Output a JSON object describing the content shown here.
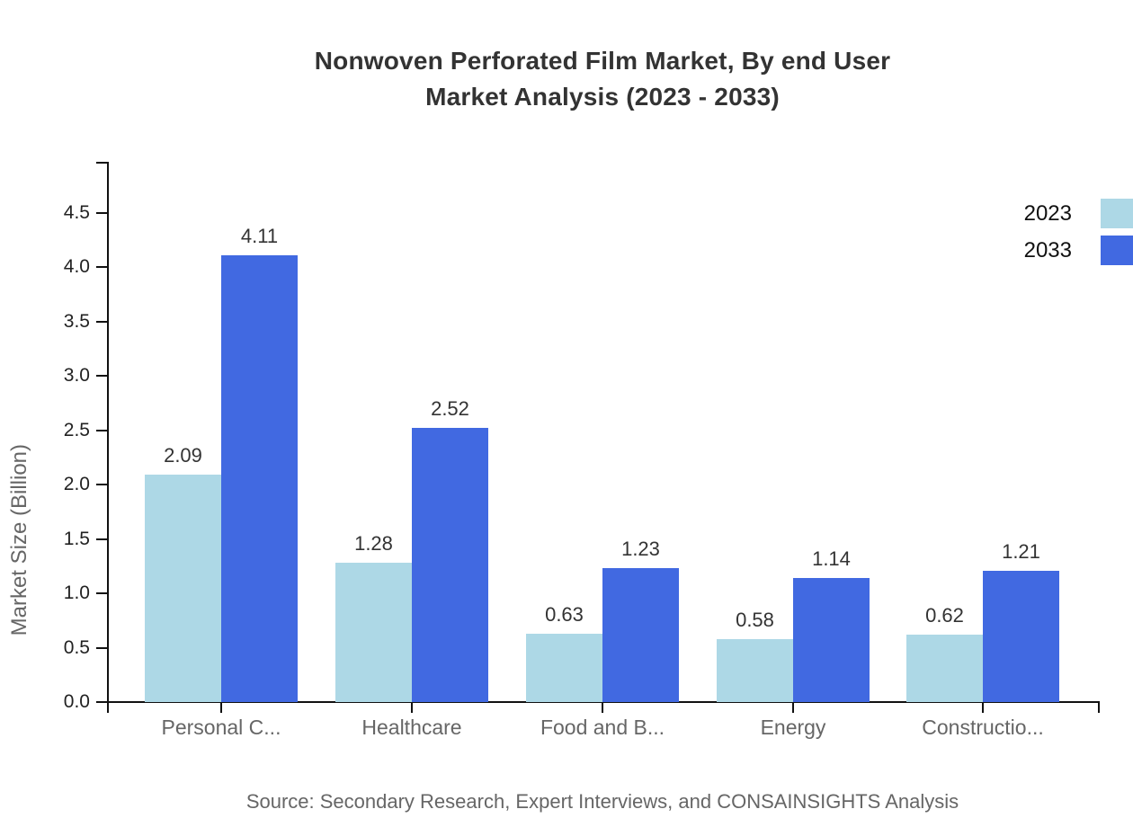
{
  "title": {
    "line1": "Nonwoven Perforated Film Market, By end User",
    "line2": "Market Analysis (2023 - 2033)"
  },
  "source": "Source: Secondary Research, Expert Interviews, and CONSAINSIGHTS Analysis",
  "colors": {
    "series_2023": "#ADD8E6",
    "series_2033": "#4169E1",
    "axis": "#111111",
    "value_label": "#333333",
    "category_label": "#666666"
  },
  "chart_data": {
    "type": "bar",
    "title": "Nonwoven Perforated Film Market, By end User Market Analysis (2023 - 2033)",
    "categories": [
      "Personal C...",
      "Healthcare",
      "Food and B...",
      "Energy",
      "Constructio..."
    ],
    "series": [
      {
        "name": "2023",
        "color": "#ADD8E6",
        "values": [
          2.09,
          1.28,
          0.63,
          0.58,
          0.62
        ]
      },
      {
        "name": "2033",
        "color": "#4169E1",
        "values": [
          4.11,
          2.52,
          1.23,
          1.14,
          1.21
        ]
      }
    ],
    "xlabel": "",
    "ylabel": "Market Size (Billion)",
    "ylim": [
      0,
      5
    ],
    "yticks": [
      0.0,
      0.5,
      1.0,
      1.5,
      2.0,
      2.5,
      3.0,
      3.5,
      4.0,
      4.5
    ],
    "grid": false,
    "legend_position": "top-right",
    "value_labels_shown": true
  }
}
